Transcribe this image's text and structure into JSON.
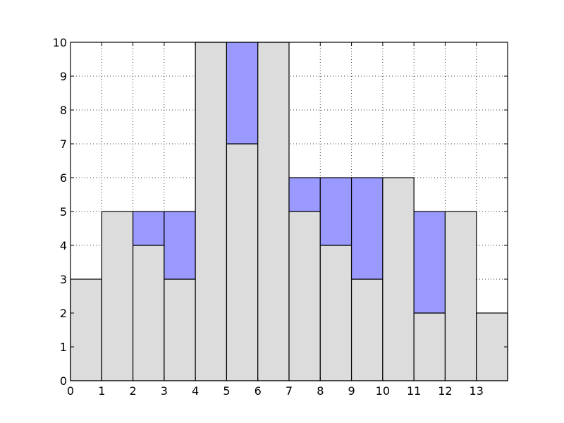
{
  "chart_data": {
    "type": "bar",
    "title": "",
    "xlabel": "",
    "ylabel": "",
    "xlim": [
      0,
      14
    ],
    "ylim": [
      0,
      10
    ],
    "grid": true,
    "x_ticks": [
      0,
      1,
      2,
      3,
      4,
      5,
      6,
      7,
      8,
      9,
      10,
      11,
      12,
      13
    ],
    "y_ticks": [
      0,
      1,
      2,
      3,
      4,
      5,
      6,
      7,
      8,
      9,
      10
    ],
    "categories": [
      0,
      1,
      2,
      3,
      4,
      5,
      6,
      7,
      8,
      9,
      10,
      11,
      12,
      13
    ],
    "series": [
      {
        "values": [
          3,
          5,
          4,
          3,
          10,
          7,
          10,
          5,
          4,
          3,
          6,
          2,
          5,
          2
        ]
      },
      {
        "values": [
          0,
          0,
          1,
          2,
          0,
          3,
          0,
          1,
          2,
          3,
          0,
          3,
          0,
          0
        ]
      }
    ],
    "stacked": true,
    "colors": {
      "base": "#dcdcdc",
      "increment": "#9999ff",
      "edge": "#000000"
    }
  }
}
